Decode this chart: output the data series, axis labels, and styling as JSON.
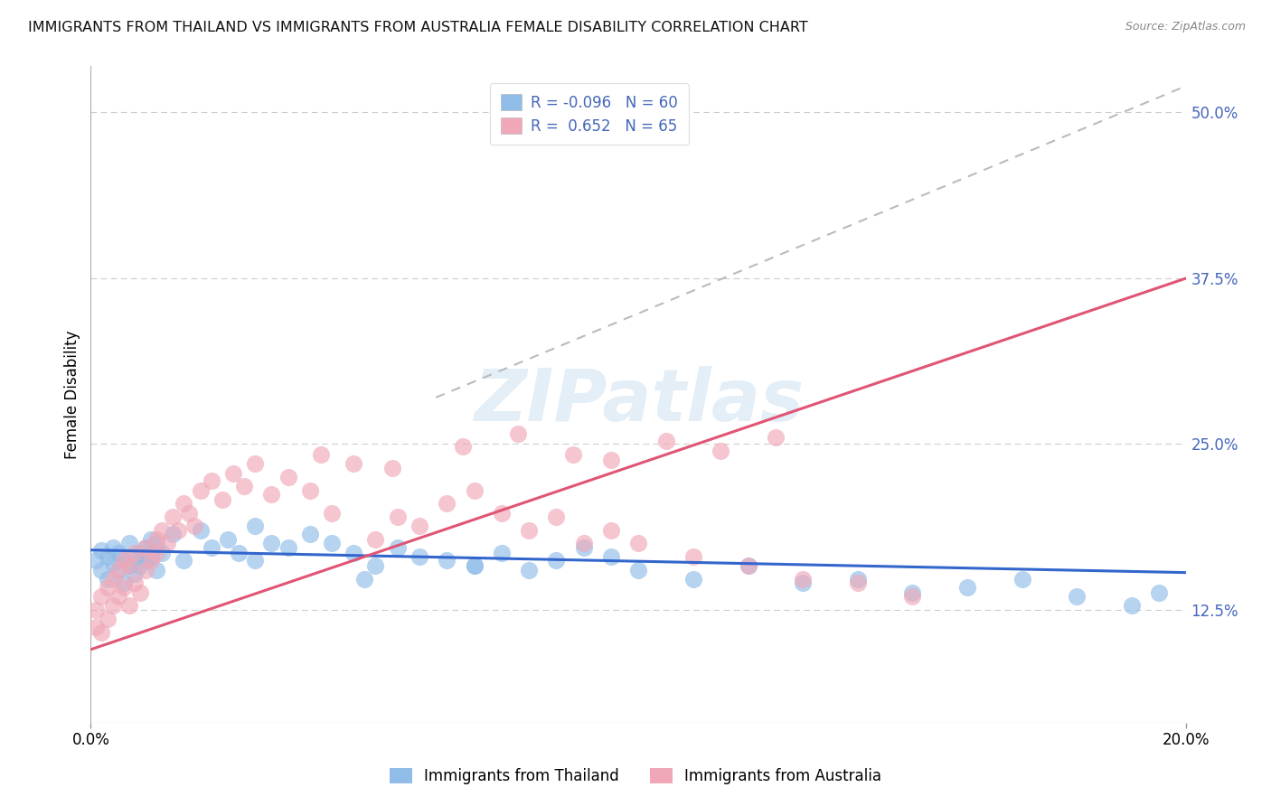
{
  "title": "IMMIGRANTS FROM THAILAND VS IMMIGRANTS FROM AUSTRALIA FEMALE DISABILITY CORRELATION CHART",
  "source": "Source: ZipAtlas.com",
  "ylabel": "Female Disability",
  "y_ticks": [
    0.125,
    0.25,
    0.375,
    0.5
  ],
  "y_tick_labels": [
    "12.5%",
    "25.0%",
    "37.5%",
    "50.0%"
  ],
  "x_min": 0.0,
  "x_max": 0.2,
  "y_min": 0.04,
  "y_max": 0.535,
  "watermark": "ZIPatlas",
  "background_color": "#ffffff",
  "grid_color": "#cccccc",
  "title_fontsize": 11.5,
  "legend_text_color": "#4466bb",
  "thailand_color": "#90bce8",
  "australia_color": "#f0a8b8",
  "thailand_line_color": "#3366cc",
  "australia_line_color": "#e05575",
  "dash_line_color": "#bbbbbb",
  "series_thailand_x": [
    0.001,
    0.002,
    0.002,
    0.003,
    0.003,
    0.004,
    0.004,
    0.005,
    0.005,
    0.006,
    0.006,
    0.007,
    0.007,
    0.008,
    0.008,
    0.009,
    0.009,
    0.01,
    0.01,
    0.011,
    0.011,
    0.012,
    0.012,
    0.013,
    0.015,
    0.017,
    0.02,
    0.022,
    0.025,
    0.027,
    0.03,
    0.033,
    0.036,
    0.04,
    0.044,
    0.048,
    0.052,
    0.056,
    0.06,
    0.065,
    0.07,
    0.075,
    0.08,
    0.085,
    0.09,
    0.095,
    0.1,
    0.11,
    0.12,
    0.13,
    0.14,
    0.15,
    0.16,
    0.17,
    0.18,
    0.19,
    0.195,
    0.03,
    0.05,
    0.07
  ],
  "series_thailand_y": [
    0.162,
    0.155,
    0.17,
    0.148,
    0.165,
    0.16,
    0.172,
    0.155,
    0.168,
    0.162,
    0.145,
    0.158,
    0.175,
    0.165,
    0.152,
    0.168,
    0.158,
    0.172,
    0.162,
    0.178,
    0.165,
    0.155,
    0.175,
    0.168,
    0.182,
    0.162,
    0.185,
    0.172,
    0.178,
    0.168,
    0.188,
    0.175,
    0.172,
    0.182,
    0.175,
    0.168,
    0.158,
    0.172,
    0.165,
    0.162,
    0.158,
    0.168,
    0.155,
    0.162,
    0.172,
    0.165,
    0.155,
    0.148,
    0.158,
    0.145,
    0.148,
    0.138,
    0.142,
    0.148,
    0.135,
    0.128,
    0.138,
    0.162,
    0.148,
    0.158
  ],
  "series_australia_x": [
    0.001,
    0.001,
    0.002,
    0.002,
    0.003,
    0.003,
    0.004,
    0.004,
    0.005,
    0.005,
    0.006,
    0.006,
    0.007,
    0.007,
    0.008,
    0.008,
    0.009,
    0.01,
    0.01,
    0.011,
    0.012,
    0.012,
    0.013,
    0.014,
    0.015,
    0.016,
    0.017,
    0.018,
    0.019,
    0.02,
    0.022,
    0.024,
    0.026,
    0.028,
    0.03,
    0.033,
    0.036,
    0.04,
    0.044,
    0.048,
    0.052,
    0.056,
    0.06,
    0.065,
    0.07,
    0.075,
    0.08,
    0.085,
    0.09,
    0.095,
    0.1,
    0.11,
    0.12,
    0.13,
    0.14,
    0.15,
    0.042,
    0.055,
    0.068,
    0.078,
    0.088,
    0.095,
    0.105,
    0.115,
    0.125
  ],
  "series_australia_y": [
    0.112,
    0.125,
    0.108,
    0.135,
    0.118,
    0.142,
    0.128,
    0.148,
    0.135,
    0.155,
    0.142,
    0.162,
    0.128,
    0.158,
    0.145,
    0.168,
    0.138,
    0.155,
    0.172,
    0.162,
    0.178,
    0.168,
    0.185,
    0.175,
    0.195,
    0.185,
    0.205,
    0.198,
    0.188,
    0.215,
    0.222,
    0.208,
    0.228,
    0.218,
    0.235,
    0.212,
    0.225,
    0.215,
    0.198,
    0.235,
    0.178,
    0.195,
    0.188,
    0.205,
    0.215,
    0.198,
    0.185,
    0.195,
    0.175,
    0.185,
    0.175,
    0.165,
    0.158,
    0.148,
    0.145,
    0.135,
    0.242,
    0.232,
    0.248,
    0.258,
    0.242,
    0.238,
    0.252,
    0.245,
    0.255
  ]
}
